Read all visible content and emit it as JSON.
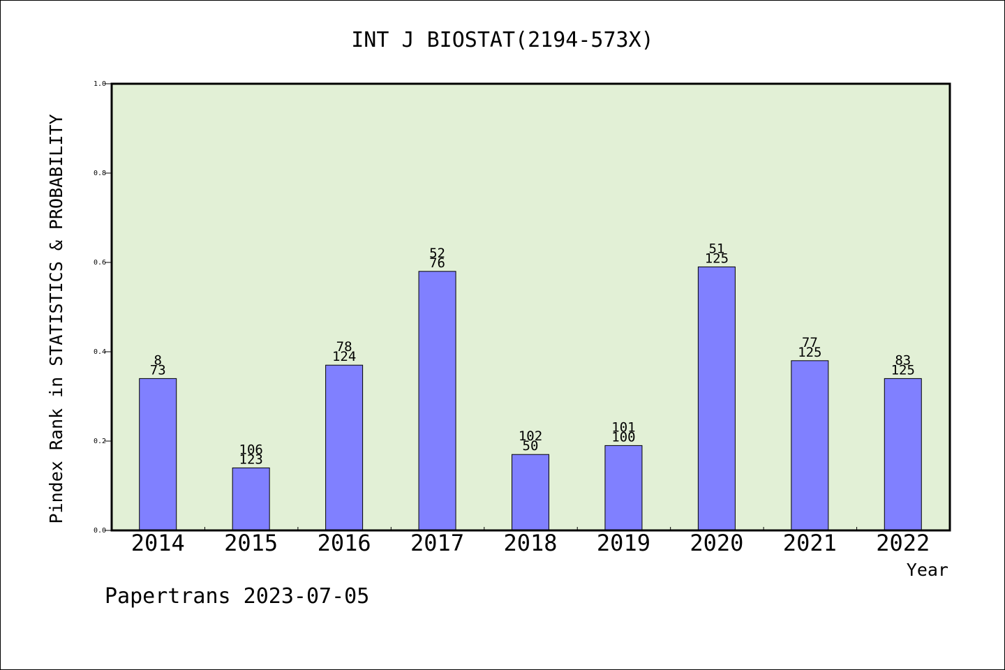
{
  "chart_data": {
    "type": "bar",
    "title": "INT J BIOSTAT(2194-573X)",
    "xlabel": "Year",
    "ylabel": "Pindex Rank in STATISTICS & PROBABILITY",
    "categories": [
      "2014",
      "2015",
      "2016",
      "2017",
      "2018",
      "2019",
      "2020",
      "2021",
      "2022"
    ],
    "values": [
      0.34,
      0.14,
      0.37,
      0.58,
      0.17,
      0.19,
      0.59,
      0.38,
      0.34
    ],
    "label_top": [
      "8",
      "106",
      "78",
      "52",
      "102",
      "101",
      "51",
      "77",
      "83"
    ],
    "label_bottom": [
      "73",
      "123",
      "124",
      "76",
      "50",
      "100",
      "125",
      "125",
      "125"
    ],
    "ylim": [
      0,
      1.0
    ],
    "yticks": [
      "0.0",
      "0.2",
      "0.4",
      "0.6",
      "0.8",
      "1.0"
    ],
    "grid": false,
    "legend": "none",
    "colors": {
      "plot_background": "#e2f0d6",
      "bar_fill": "#8080ff",
      "bar_stroke": "#000000"
    }
  },
  "footer": {
    "watermark": "Papertrans 2023-07-05"
  }
}
